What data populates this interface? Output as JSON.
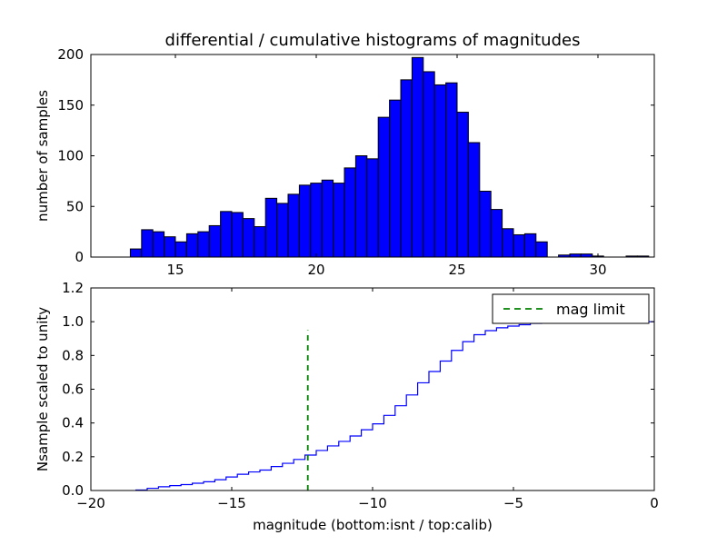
{
  "figure": {
    "background": "#ffffff"
  },
  "chart_data": [
    {
      "type": "bar",
      "name": "differential-histogram",
      "title": "differential / cumulative histograms of magnitudes",
      "ylabel": "number of samples",
      "bar_color": "#0000ff",
      "bar_edge_color": "#000000",
      "bin_start": 13.4,
      "bin_width": 0.4,
      "counts": [
        8,
        27,
        25,
        20,
        15,
        23,
        25,
        31,
        45,
        44,
        38,
        30,
        58,
        53,
        62,
        71,
        73,
        76,
        73,
        88,
        100,
        97,
        138,
        155,
        175,
        197,
        183,
        170,
        172,
        143,
        113,
        65,
        47,
        28,
        22,
        23,
        15,
        0,
        2,
        3,
        3,
        1,
        0,
        0,
        1,
        1
      ],
      "xlim": [
        12,
        32
      ],
      "ylim": [
        0,
        200
      ],
      "xtick_values": [
        15,
        20,
        25,
        30
      ],
      "xtick_labels": [
        "15",
        "20",
        "25",
        "30"
      ],
      "ytick_values": [
        0,
        50,
        100,
        150,
        200
      ],
      "ytick_labels": [
        "0",
        "50",
        "100",
        "150",
        "200"
      ],
      "grid": false
    },
    {
      "type": "line",
      "name": "cumulative-histogram",
      "step": true,
      "xlabel": "magnitude (bottom:isnt / top:calib)",
      "ylabel": "Nsample scaled to unity",
      "line_color": "#0000ff",
      "x_start": -18.4,
      "bin_width": 0.4,
      "cumulative_fractions": [
        0.003,
        0.013,
        0.022,
        0.029,
        0.035,
        0.043,
        0.052,
        0.064,
        0.08,
        0.096,
        0.11,
        0.121,
        0.142,
        0.161,
        0.184,
        0.21,
        0.237,
        0.264,
        0.291,
        0.323,
        0.36,
        0.395,
        0.445,
        0.502,
        0.566,
        0.638,
        0.705,
        0.767,
        0.83,
        0.882,
        0.923,
        0.947,
        0.964,
        0.974,
        0.982,
        0.99,
        0.996,
        0.996,
        0.997,
        0.998,
        0.999,
        0.999,
        0.999,
        0.999,
        1.0,
        1.0
      ],
      "xlim": [
        -20,
        0
      ],
      "ylim": [
        0,
        1.2
      ],
      "xtick_values": [
        -20,
        -15,
        -10,
        -5,
        0
      ],
      "xtick_labels": [
        "−20",
        "−15",
        "−10",
        "−5",
        "0"
      ],
      "ytick_values": [
        0.0,
        0.2,
        0.4,
        0.6,
        0.8,
        1.0,
        1.2
      ],
      "ytick_labels": [
        "0.0",
        "0.2",
        "0.4",
        "0.6",
        "0.8",
        "1.0",
        "1.2"
      ],
      "grid": false,
      "vline": {
        "x": -12.3,
        "ymin": 0,
        "ymax": 0.95,
        "color": "#008000",
        "style": "dashed",
        "label": "mag limit"
      },
      "legend": {
        "position": "upper right",
        "entries": [
          {
            "label": "mag limit",
            "color": "#008000",
            "style": "dashed"
          }
        ]
      }
    }
  ]
}
